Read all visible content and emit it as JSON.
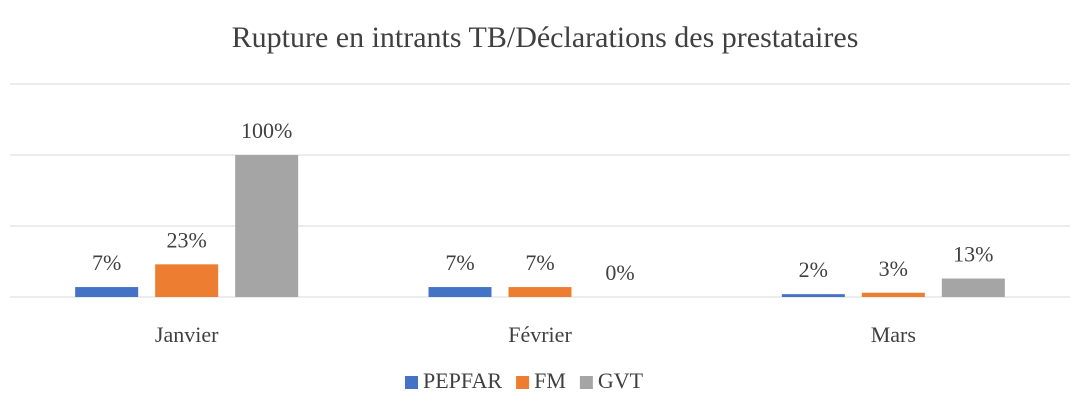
{
  "chart_data": {
    "type": "bar",
    "title": "Rupture en intrants TB/Déclarations des prestataires",
    "categories": [
      "Janvier",
      "Février",
      "Mars"
    ],
    "series": [
      {
        "name": "PEPFAR",
        "color": "#4472c4",
        "values": [
          7,
          7,
          2
        ],
        "value_labels": [
          "7%",
          "7%",
          "2%"
        ]
      },
      {
        "name": "FM",
        "color": "#ed7d31",
        "values": [
          23,
          7,
          3
        ],
        "value_labels": [
          "23%",
          "7%",
          "3%"
        ]
      },
      {
        "name": "GVT",
        "color": "#a5a5a5",
        "values": [
          100,
          0,
          13
        ],
        "value_labels": [
          "100%",
          "0%",
          "13%"
        ]
      }
    ],
    "ylim": [
      0,
      150
    ],
    "yticks": [
      0,
      50,
      100,
      150
    ],
    "grid": true,
    "legend": "bottom"
  }
}
